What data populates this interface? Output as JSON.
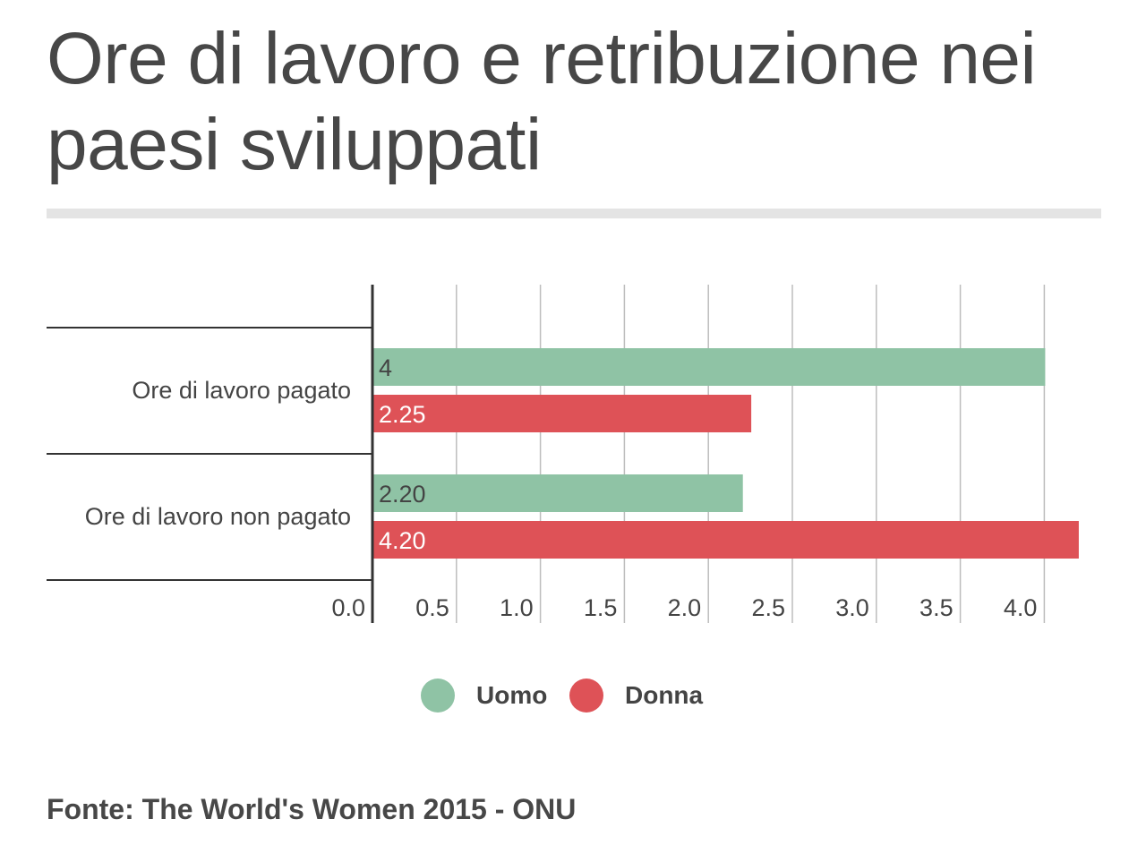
{
  "title": "Ore di lavoro e retribuzione nei paesi sviluppati",
  "source": "Fonte: The World's Women 2015 - ONU",
  "colors": {
    "uomo": "#8fc3a5",
    "donna": "#de5257",
    "grid": "#bdbdbd",
    "axis": "#333333",
    "rule": "#e4e4e4"
  },
  "chart_data": {
    "type": "bar",
    "orientation": "horizontal",
    "categories": [
      "Ore di lavoro pagato",
      "Ore di lavoro non pagato"
    ],
    "series": [
      {
        "name": "Uomo",
        "values": [
          4,
          2.2
        ],
        "labels": [
          "4",
          "2.20"
        ],
        "color": "#8fc3a5"
      },
      {
        "name": "Donna",
        "values": [
          2.25,
          4.2
        ],
        "labels": [
          "2.25",
          "4.20"
        ],
        "color": "#de5257"
      }
    ],
    "x_ticks": [
      "0.0",
      "0.5",
      "1.0",
      "1.5",
      "2.0",
      "2.5",
      "3.0",
      "3.5",
      "4.0"
    ],
    "xlim": [
      0,
      4.2
    ],
    "grid": true,
    "legend_position": "bottom"
  }
}
